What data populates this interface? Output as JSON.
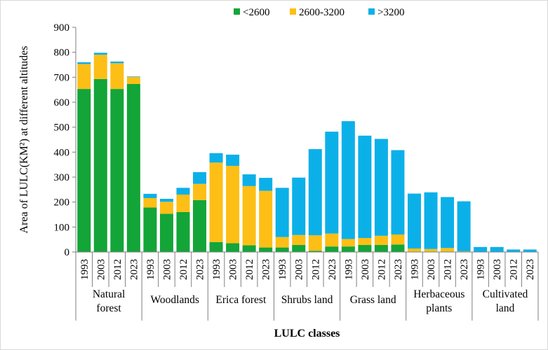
{
  "chart_data": {
    "type": "bar",
    "stacked": true,
    "title": "",
    "xlabel": "LULC classes",
    "ylabel": "Area of LULC(KM²) at different altitudes",
    "ylim": [
      0,
      900
    ],
    "yticks": [
      0,
      100,
      200,
      300,
      400,
      500,
      600,
      700,
      800,
      900
    ],
    "grid": false,
    "legend_position": "top-center",
    "groups": [
      {
        "label_lines": [
          "Natural",
          "forest"
        ],
        "years": [
          "1993",
          "2003",
          "2012",
          "2023"
        ]
      },
      {
        "label_lines": [
          "Woodlands"
        ],
        "years": [
          "1993",
          "2003",
          "2012",
          "2023"
        ]
      },
      {
        "label_lines": [
          "Erica forest"
        ],
        "years": [
          "1993",
          "2003",
          "2012",
          "2023"
        ]
      },
      {
        "label_lines": [
          "Shrubs land"
        ],
        "years": [
          "1993",
          "2003",
          "2012",
          "2023"
        ]
      },
      {
        "label_lines": [
          "Grass land"
        ],
        "years": [
          "1993",
          "2003",
          "2012",
          "2023"
        ]
      },
      {
        "label_lines": [
          "Herbaceous",
          "plants"
        ],
        "years": [
          "1993",
          "2003",
          "2012",
          "2023"
        ]
      },
      {
        "label_lines": [
          "Cultivated",
          "land"
        ],
        "years": [
          "1993",
          "2003",
          "2012",
          "2023"
        ]
      }
    ],
    "series": [
      {
        "name": "<2600",
        "color": "#13a538",
        "values": [
          653,
          693,
          653,
          673,
          178,
          153,
          160,
          208,
          40,
          35,
          27,
          18,
          18,
          28,
          5,
          22,
          22,
          28,
          28,
          30,
          2,
          2,
          2,
          0,
          0,
          0,
          0,
          0
        ]
      },
      {
        "name": "2600-3200",
        "color": "#fdbf15",
        "values": [
          100,
          97,
          103,
          28,
          38,
          48,
          70,
          65,
          318,
          310,
          237,
          227,
          42,
          40,
          62,
          52,
          30,
          28,
          37,
          40,
          12,
          10,
          14,
          3,
          0,
          0,
          0,
          0
        ]
      },
      {
        "name": ">3200",
        "color": "#0cb0e8",
        "values": [
          7,
          8,
          7,
          2,
          17,
          12,
          27,
          47,
          38,
          45,
          47,
          52,
          197,
          230,
          345,
          408,
          472,
          410,
          388,
          338,
          220,
          227,
          204,
          200,
          20,
          20,
          10,
          10
        ]
      }
    ]
  }
}
